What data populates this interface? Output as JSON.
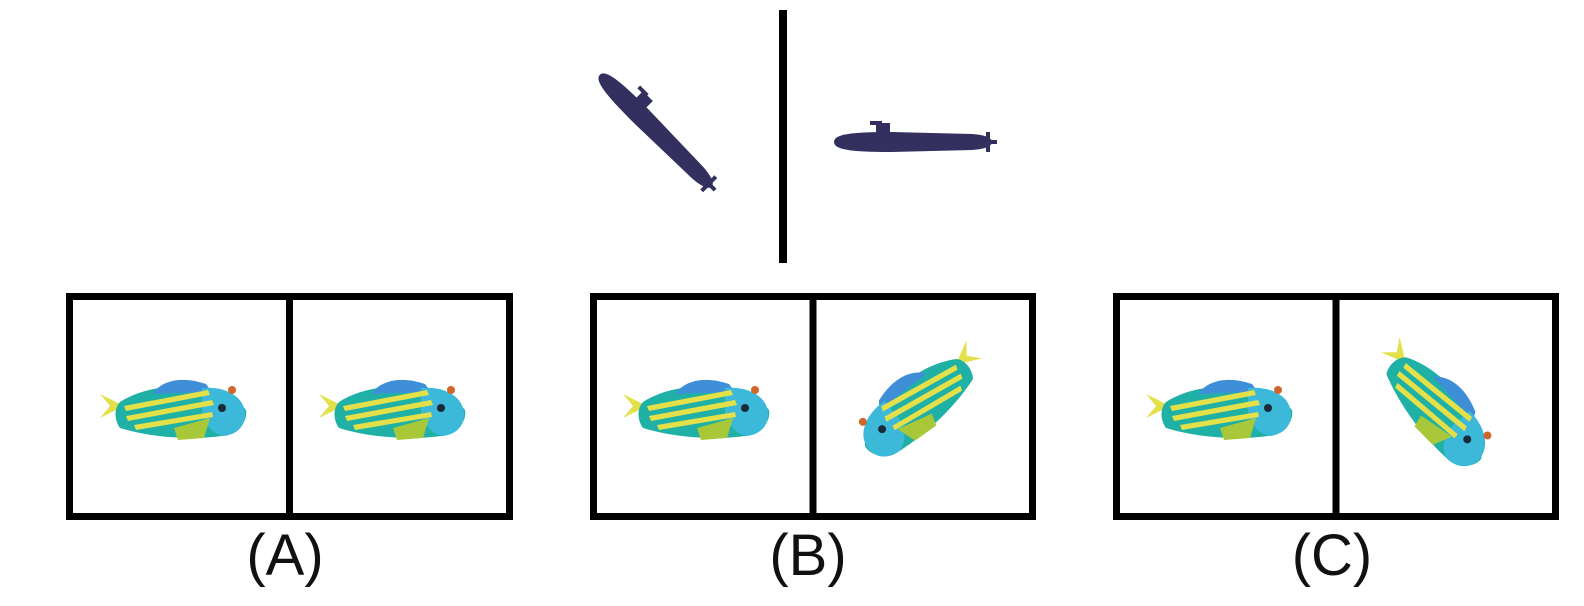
{
  "colors": {
    "submarine": "#33305f",
    "fish_body": "#1fb0a6",
    "fish_head": "#3cb8d8",
    "fish_stripe": "#e4e04a",
    "fish_fin": "#a8c83a",
    "fish_dorsal": "#3f8fd8",
    "fish_eye": "#1a2a3a",
    "fish_spot": "#d0662a",
    "frame": "#000000"
  },
  "example": {
    "left_icon": "submarine-icon",
    "right_icon": "submarine-icon"
  },
  "options": [
    {
      "label": "(A)",
      "left_icon": "fish-icon",
      "right_icon": "fish-icon"
    },
    {
      "label": "(B)",
      "left_icon": "fish-icon",
      "right_icon": "fish-icon"
    },
    {
      "label": "(C)",
      "left_icon": "fish-icon",
      "right_icon": "fish-icon"
    }
  ]
}
